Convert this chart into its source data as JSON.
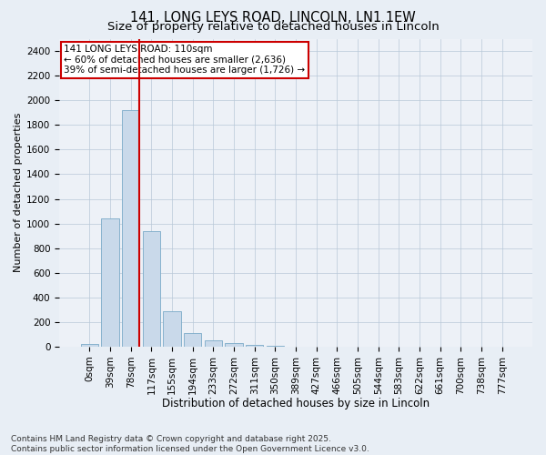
{
  "title1": "141, LONG LEYS ROAD, LINCOLN, LN1 1EW",
  "title2": "Size of property relative to detached houses in Lincoln",
  "xlabel": "Distribution of detached houses by size in Lincoln",
  "ylabel": "Number of detached properties",
  "bar_labels": [
    "0sqm",
    "39sqm",
    "78sqm",
    "117sqm",
    "155sqm",
    "194sqm",
    "233sqm",
    "272sqm",
    "311sqm",
    "350sqm",
    "389sqm",
    "427sqm",
    "466sqm",
    "505sqm",
    "544sqm",
    "583sqm",
    "622sqm",
    "661sqm",
    "700sqm",
    "738sqm",
    "777sqm"
  ],
  "bar_values": [
    20,
    1040,
    1920,
    940,
    290,
    110,
    55,
    30,
    18,
    5,
    2,
    1,
    0,
    0,
    0,
    0,
    0,
    0,
    0,
    0,
    0
  ],
  "bar_color": "#c9d9ea",
  "bar_edge_color": "#7aaac8",
  "vline_color": "#cc0000",
  "annotation_line1": "141 LONG LEYS ROAD: 110sqm",
  "annotation_line2": "← 60% of detached houses are smaller (2,636)",
  "annotation_line3": "39% of semi-detached houses are larger (1,726) →",
  "annotation_box_color": "#ffffff",
  "annotation_box_edge": "#cc0000",
  "ylim": [
    0,
    2500
  ],
  "yticks": [
    0,
    200,
    400,
    600,
    800,
    1000,
    1200,
    1400,
    1600,
    1800,
    2000,
    2200,
    2400
  ],
  "bg_color": "#e8eef5",
  "plot_bg_color": "#edf1f7",
  "footer": "Contains HM Land Registry data © Crown copyright and database right 2025.\nContains public sector information licensed under the Open Government Licence v3.0.",
  "title1_fontsize": 10.5,
  "title2_fontsize": 9.5,
  "tick_fontsize": 7.5,
  "ylabel_fontsize": 8,
  "xlabel_fontsize": 8.5,
  "annotation_fontsize": 7.5,
  "footer_fontsize": 6.5
}
